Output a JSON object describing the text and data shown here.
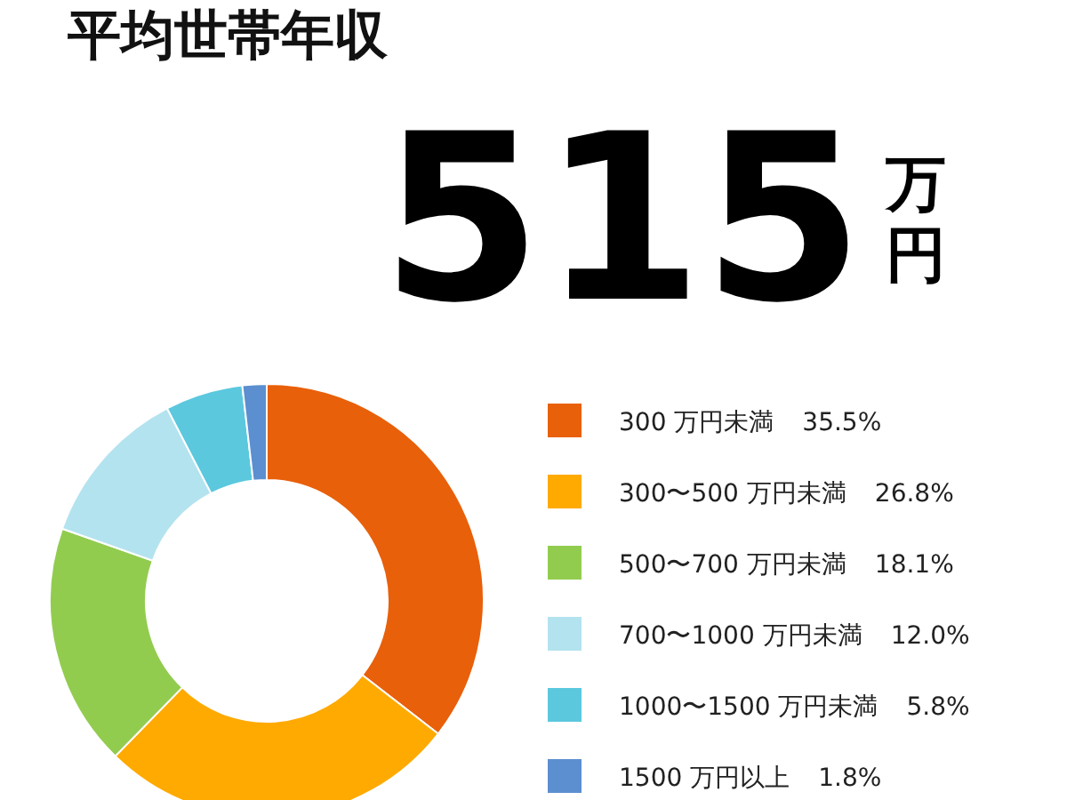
{
  "chart_data": {
    "type": "donut",
    "title": "平均世帯年収",
    "subtitle": "515",
    "annotations": [
      "万円"
    ],
    "categories": [
      "300 万円未満",
      "300〜500 万円未満",
      "500〜700 万円未満",
      "700〜1000 万円未満",
      "1000〜1500 万円未満",
      "1500 万円以上"
    ],
    "values": [
      35.5,
      26.8,
      18.1,
      12.0,
      5.8,
      1.8
    ],
    "value_labels": [
      "35.5%",
      "26.8%",
      "18.1%",
      "12.0%",
      "5.8%",
      "1.8%"
    ],
    "colors": [
      "#e8600a",
      "#ffaa00",
      "#92cc4f",
      "#b3e3ef",
      "#5bc8de",
      "#5b8fd0"
    ],
    "legend": "right"
  }
}
